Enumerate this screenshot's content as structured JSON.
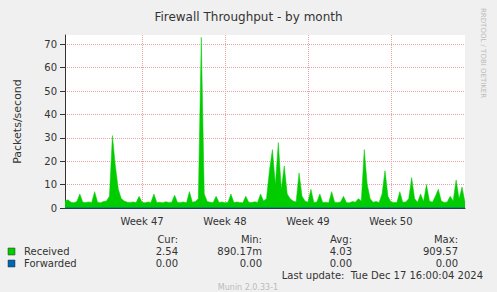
{
  "chart_data": {
    "type": "area",
    "title": "Firewall Throughput - by month",
    "y_label": "Packets/second",
    "categories": [
      null,
      null,
      null,
      null,
      null,
      null,
      null,
      null,
      null,
      null,
      null,
      null,
      null,
      null,
      null,
      null,
      null,
      null,
      null,
      null,
      null,
      null,
      null,
      null,
      null,
      null,
      "Week 47",
      null,
      null,
      null,
      null,
      null,
      null,
      null,
      null,
      null,
      null,
      null,
      null,
      null,
      null,
      null,
      null,
      null,
      null,
      null,
      null,
      null,
      null,
      null,
      null,
      null,
      null,
      null,
      "Week 48",
      null,
      null,
      null,
      null,
      null,
      null,
      null,
      null,
      null,
      null,
      null,
      null,
      null,
      null,
      null,
      null,
      null,
      null,
      null,
      null,
      null,
      null,
      null,
      null,
      null,
      null,
      null,
      "Week 49",
      null,
      null,
      null,
      null,
      null,
      null,
      null,
      null,
      null,
      null,
      null,
      null,
      null,
      null,
      null,
      null,
      null,
      null,
      null,
      null,
      null,
      null,
      null,
      null,
      null,
      null,
      null,
      "Week 50",
      null,
      null,
      null,
      null,
      null,
      null,
      null,
      null,
      null,
      null,
      null,
      null,
      null,
      null,
      null,
      null,
      null,
      null,
      null,
      null,
      null,
      null,
      null,
      null,
      null
    ],
    "series": [
      {
        "name": "Received",
        "color": "#00cc00",
        "type": "area",
        "values": [
          3,
          3.5,
          2.5,
          2.2,
          2.8,
          6,
          2.5,
          2.3,
          2.6,
          2.4,
          7,
          2.5,
          2.2,
          2.8,
          3,
          5,
          31,
          18,
          8,
          4,
          3,
          2.5,
          2.4,
          2.6,
          2.3,
          5,
          2.5,
          2.2,
          2.6,
          2.4,
          6,
          2.3,
          2.5,
          2.2,
          2.7,
          2.4,
          2.5,
          5.5,
          2.3,
          2.4,
          2.6,
          2.2,
          7,
          2.5,
          2.8,
          4,
          73,
          6,
          2.8,
          2.5,
          2.3,
          5,
          2.4,
          2.6,
          2.2,
          2.5,
          6,
          2.3,
          2.6,
          2.4,
          2.2,
          5,
          2.5,
          2.3,
          2.7,
          2.4,
          6,
          3,
          4,
          16,
          25,
          10,
          28,
          8,
          18,
          6,
          4,
          3,
          2.6,
          15,
          5,
          3,
          2.5,
          8,
          2.4,
          2.6,
          6,
          2.3,
          2.5,
          2.2,
          7,
          2.5,
          2.4,
          2.6,
          5,
          2.3,
          2.2,
          2.8,
          2.5,
          4,
          3,
          25,
          10,
          4,
          2.5,
          2.8,
          2.4,
          6,
          16,
          5,
          2.6,
          2.4,
          2.3,
          7,
          2.5,
          2.6,
          4,
          13,
          4,
          2.5,
          6,
          2.8,
          10,
          3,
          2.5,
          5,
          8,
          3,
          2.4,
          2.6,
          5,
          3,
          12,
          4,
          9,
          2.5
        ]
      },
      {
        "name": "Forwarded",
        "color": "#0066b3",
        "type": "line",
        "values": [
          0,
          0,
          0,
          0,
          0,
          0,
          0,
          0,
          0,
          0,
          0,
          0,
          0,
          0,
          0,
          0,
          0,
          0,
          0,
          0,
          0,
          0,
          0,
          0,
          0,
          0,
          0,
          0,
          0,
          0,
          0,
          0,
          0,
          0,
          0,
          0,
          0,
          0,
          0,
          0,
          0,
          0,
          0,
          0,
          0,
          0,
          0,
          0,
          0,
          0,
          0,
          0,
          0,
          0,
          0,
          0,
          0,
          0,
          0,
          0,
          0,
          0,
          0,
          0,
          0,
          0,
          0,
          0,
          0,
          0,
          0,
          0,
          0,
          0,
          0,
          0,
          0,
          0,
          0,
          0,
          0,
          0,
          0,
          0,
          0,
          0,
          0,
          0,
          0,
          0,
          0,
          0,
          0,
          0,
          0,
          0,
          0,
          0,
          0,
          0,
          0,
          0,
          0,
          0,
          0,
          0,
          0,
          0,
          0,
          0,
          0,
          0,
          0,
          0,
          0,
          0,
          0,
          0,
          0,
          0,
          0,
          0,
          0,
          0,
          0,
          0,
          0,
          0,
          0,
          0,
          0,
          0,
          0,
          0,
          0,
          0
        ]
      }
    ],
    "ylim": [
      0,
      74
    ],
    "yticks": [
      0,
      10,
      20,
      30,
      40,
      50,
      60,
      70
    ],
    "grid": true,
    "legend_table": {
      "columns": [
        "Cur:",
        "Min:",
        "Avg:",
        "Max:"
      ],
      "rows": [
        [
          "2.54",
          "890.17m",
          "4.03",
          "909.57"
        ],
        [
          "0.00",
          "0.00",
          "0.00",
          "0.00"
        ]
      ]
    },
    "annotations": {
      "last_update": "Last update:  Tue Dec 17 16:00:04 2024",
      "side_text": "RRDTOOL / TOBI OETIKER",
      "footer": "Munin 2.0.33-1"
    }
  }
}
